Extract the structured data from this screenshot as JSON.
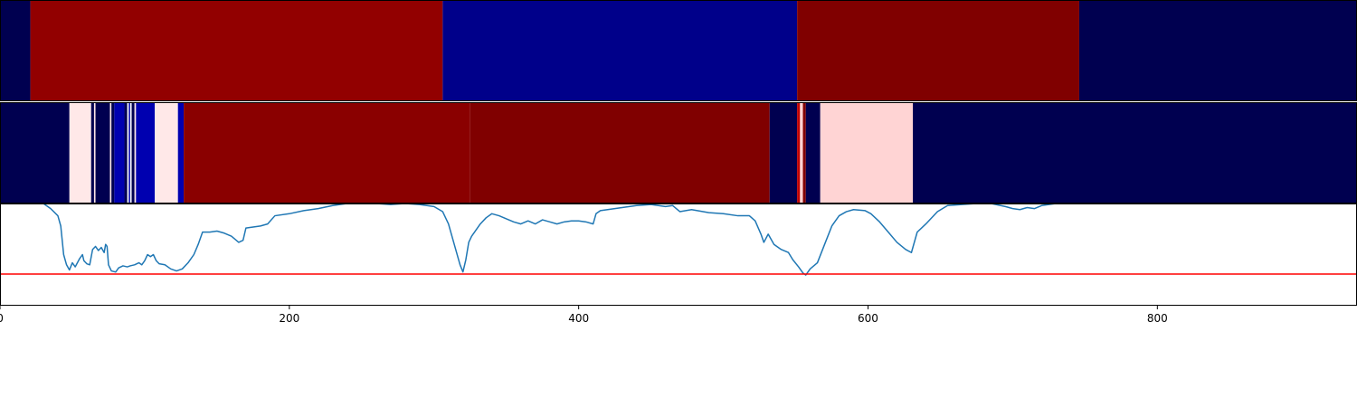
{
  "chart_data": [
    {
      "type": "heatmap",
      "xlim": [
        0,
        938
      ],
      "colormap": "seismic",
      "segments": [
        {
          "start": 0,
          "end": 21,
          "color": "#000050"
        },
        {
          "start": 21,
          "end": 306,
          "color": "#920000"
        },
        {
          "start": 306,
          "end": 551,
          "color": "#00008a"
        },
        {
          "start": 551,
          "end": 746,
          "color": "#800000"
        },
        {
          "start": 746,
          "end": 938,
          "color": "#000050"
        }
      ]
    },
    {
      "type": "heatmap",
      "xlim": [
        0,
        938
      ],
      "colormap": "seismic",
      "segments": [
        {
          "start": 0,
          "end": 48,
          "color": "#000050"
        },
        {
          "start": 48,
          "end": 63,
          "color": "#ffe8e8"
        },
        {
          "start": 63,
          "end": 65,
          "color": "#000050"
        },
        {
          "start": 65,
          "end": 66,
          "color": "#ffe8e8"
        },
        {
          "start": 66,
          "end": 76,
          "color": "#000050"
        },
        {
          "start": 76,
          "end": 77,
          "color": "#ffe8e8"
        },
        {
          "start": 77,
          "end": 79,
          "color": "#000050"
        },
        {
          "start": 79,
          "end": 86,
          "color": "#0000b0"
        },
        {
          "start": 86,
          "end": 88,
          "color": "#000050"
        },
        {
          "start": 88,
          "end": 89,
          "color": "#ffffff"
        },
        {
          "start": 89,
          "end": 90,
          "color": "#0000b0"
        },
        {
          "start": 90,
          "end": 91,
          "color": "#ffffff"
        },
        {
          "start": 91,
          "end": 93,
          "color": "#000050"
        },
        {
          "start": 93,
          "end": 94,
          "color": "#ffe8e8"
        },
        {
          "start": 94,
          "end": 107,
          "color": "#0000b0"
        },
        {
          "start": 107,
          "end": 123,
          "color": "#ffe8e8"
        },
        {
          "start": 123,
          "end": 127,
          "color": "#0000b0"
        },
        {
          "start": 127,
          "end": 325,
          "color": "#8a0000"
        },
        {
          "start": 325,
          "end": 532,
          "color": "#800000"
        },
        {
          "start": 532,
          "end": 551,
          "color": "#000050"
        },
        {
          "start": 551,
          "end": 553,
          "color": "#c00000"
        },
        {
          "start": 553,
          "end": 555,
          "color": "#ffd4d4"
        },
        {
          "start": 555,
          "end": 557,
          "color": "#800000"
        },
        {
          "start": 557,
          "end": 567,
          "color": "#000050"
        },
        {
          "start": 567,
          "end": 631,
          "color": "#ffd4d4"
        },
        {
          "start": 631,
          "end": 938,
          "color": "#000050"
        }
      ]
    },
    {
      "type": "line",
      "xlim": [
        0,
        938
      ],
      "ylim": [
        0,
        1
      ],
      "xticks": [
        0,
        200,
        400,
        600,
        800
      ],
      "xtick_labels": [
        "0",
        "200",
        "400",
        "600",
        "800"
      ],
      "grid": false,
      "series": [
        {
          "color": "#1f77b4",
          "points": [
            [
              0,
              1.0
            ],
            [
              30,
              1.0
            ],
            [
              35,
              0.95
            ],
            [
              40,
              0.88
            ],
            [
              42,
              0.78
            ],
            [
              44,
              0.5
            ],
            [
              46,
              0.4
            ],
            [
              48,
              0.35
            ],
            [
              50,
              0.42
            ],
            [
              52,
              0.38
            ],
            [
              55,
              0.46
            ],
            [
              57,
              0.5
            ],
            [
              58,
              0.44
            ],
            [
              60,
              0.41
            ],
            [
              62,
              0.4
            ],
            [
              64,
              0.55
            ],
            [
              66,
              0.58
            ],
            [
              68,
              0.54
            ],
            [
              70,
              0.57
            ],
            [
              72,
              0.52
            ],
            [
              73,
              0.6
            ],
            [
              74,
              0.58
            ],
            [
              75,
              0.4
            ],
            [
              77,
              0.34
            ],
            [
              80,
              0.33
            ],
            [
              82,
              0.37
            ],
            [
              85,
              0.39
            ],
            [
              88,
              0.38
            ],
            [
              90,
              0.39
            ],
            [
              93,
              0.4
            ],
            [
              96,
              0.42
            ],
            [
              98,
              0.4
            ],
            [
              100,
              0.44
            ],
            [
              102,
              0.5
            ],
            [
              104,
              0.48
            ],
            [
              106,
              0.5
            ],
            [
              108,
              0.44
            ],
            [
              110,
              0.41
            ],
            [
              114,
              0.4
            ],
            [
              118,
              0.36
            ],
            [
              122,
              0.34
            ],
            [
              126,
              0.36
            ],
            [
              130,
              0.42
            ],
            [
              134,
              0.5
            ],
            [
              137,
              0.6
            ],
            [
              140,
              0.72
            ],
            [
              145,
              0.72
            ],
            [
              150,
              0.73
            ],
            [
              155,
              0.71
            ],
            [
              160,
              0.68
            ],
            [
              165,
              0.62
            ],
            [
              168,
              0.64
            ],
            [
              170,
              0.76
            ],
            [
              175,
              0.77
            ],
            [
              180,
              0.78
            ],
            [
              185,
              0.8
            ],
            [
              190,
              0.88
            ],
            [
              200,
              0.9
            ],
            [
              210,
              0.93
            ],
            [
              220,
              0.95
            ],
            [
              230,
              0.98
            ],
            [
              240,
              1.0
            ],
            [
              250,
              1.0
            ],
            [
              260,
              1.0
            ],
            [
              270,
              0.99
            ],
            [
              280,
              1.0
            ],
            [
              290,
              0.99
            ],
            [
              300,
              0.97
            ],
            [
              306,
              0.92
            ],
            [
              310,
              0.8
            ],
            [
              314,
              0.6
            ],
            [
              318,
              0.4
            ],
            [
              320,
              0.33
            ],
            [
              322,
              0.45
            ],
            [
              324,
              0.62
            ],
            [
              326,
              0.68
            ],
            [
              328,
              0.72
            ],
            [
              332,
              0.8
            ],
            [
              336,
              0.86
            ],
            [
              340,
              0.9
            ],
            [
              345,
              0.88
            ],
            [
              350,
              0.85
            ],
            [
              355,
              0.82
            ],
            [
              360,
              0.8
            ],
            [
              365,
              0.83
            ],
            [
              370,
              0.8
            ],
            [
              375,
              0.84
            ],
            [
              380,
              0.82
            ],
            [
              385,
              0.8
            ],
            [
              390,
              0.82
            ],
            [
              395,
              0.83
            ],
            [
              400,
              0.83
            ],
            [
              405,
              0.82
            ],
            [
              410,
              0.8
            ],
            [
              412,
              0.9
            ],
            [
              415,
              0.93
            ],
            [
              420,
              0.94
            ],
            [
              430,
              0.96
            ],
            [
              440,
              0.98
            ],
            [
              450,
              0.99
            ],
            [
              460,
              0.97
            ],
            [
              465,
              0.98
            ],
            [
              470,
              0.92
            ],
            [
              478,
              0.94
            ],
            [
              490,
              0.91
            ],
            [
              500,
              0.9
            ],
            [
              510,
              0.88
            ],
            [
              518,
              0.88
            ],
            [
              522,
              0.83
            ],
            [
              526,
              0.7
            ],
            [
              528,
              0.62
            ],
            [
              531,
              0.7
            ],
            [
              535,
              0.6
            ],
            [
              540,
              0.55
            ],
            [
              545,
              0.52
            ],
            [
              548,
              0.45
            ],
            [
              552,
              0.38
            ],
            [
              555,
              0.32
            ],
            [
              557,
              0.3
            ],
            [
              560,
              0.36
            ],
            [
              565,
              0.42
            ],
            [
              570,
              0.6
            ],
            [
              575,
              0.78
            ],
            [
              580,
              0.88
            ],
            [
              585,
              0.92
            ],
            [
              590,
              0.94
            ],
            [
              598,
              0.93
            ],
            [
              602,
              0.9
            ],
            [
              608,
              0.82
            ],
            [
              614,
              0.72
            ],
            [
              620,
              0.62
            ],
            [
              626,
              0.55
            ],
            [
              630,
              0.52
            ],
            [
              634,
              0.72
            ],
            [
              640,
              0.8
            ],
            [
              648,
              0.92
            ],
            [
              655,
              0.98
            ],
            [
              665,
              0.99
            ],
            [
              675,
              1.0
            ],
            [
              685,
              1.0
            ],
            [
              695,
              0.97
            ],
            [
              700,
              0.95
            ],
            [
              705,
              0.94
            ],
            [
              710,
              0.96
            ],
            [
              715,
              0.95
            ],
            [
              720,
              0.98
            ],
            [
              730,
              1.0
            ],
            [
              760,
              1.0
            ],
            [
              800,
              1.0
            ],
            [
              850,
              1.0
            ],
            [
              900,
              1.0
            ],
            [
              938,
              1.0
            ]
          ]
        }
      ],
      "hlines": [
        {
          "y": 0.31,
          "color": "#ff0000"
        }
      ]
    }
  ]
}
